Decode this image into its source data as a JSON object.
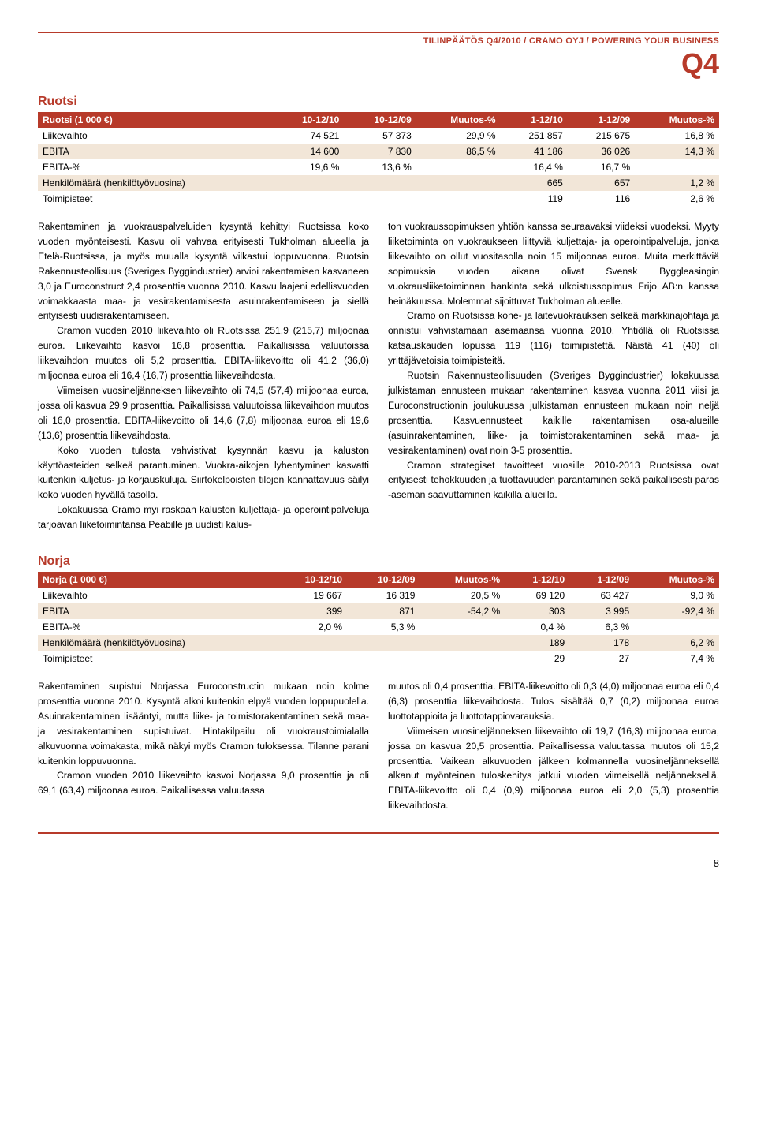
{
  "header": {
    "breadcrumb": "TILINPÄÄTÖS Q4/2010 / CRAMO OYJ / POWERING YOUR BUSINESS",
    "q": "Q4"
  },
  "ruotsi": {
    "title": "Ruotsi",
    "columns": [
      "Ruotsi (1 000 €)",
      "10-12/10",
      "10-12/09",
      "Muutos-%",
      "1-12/10",
      "1-12/09",
      "Muutos-%"
    ],
    "rows": [
      [
        "Liikevaihto",
        "74 521",
        "57 373",
        "29,9 %",
        "251 857",
        "215 675",
        "16,8 %"
      ],
      [
        "EBITA",
        "14 600",
        "7 830",
        "86,5 %",
        "41 186",
        "36 026",
        "14,3 %"
      ],
      [
        "EBITA-%",
        "19,6 %",
        "13,6 %",
        "",
        "16,4 %",
        "16,7 %",
        ""
      ],
      [
        "Henkilömäärä (henkilötyövuosina)",
        "",
        "",
        "",
        "665",
        "657",
        "1,2 %"
      ],
      [
        "Toimipisteet",
        "",
        "",
        "",
        "119",
        "116",
        "2,6 %"
      ]
    ]
  },
  "ruotsi_text": {
    "left": [
      "Rakentaminen ja vuokrauspalveluiden kysyntä kehittyi Ruotsissa koko vuoden myönteisesti. Kasvu oli vahvaa erityisesti Tukholman alueella ja Etelä-Ruotsissa, ja myös muualla kysyntä vilkastui loppuvuonna. Ruotsin Rakennusteollisuus (Sveriges Byggindustrier) arvioi rakentamisen kasvaneen 3,0 ja Euroconstruct 2,4 prosenttia vuonna 2010. Kasvu laajeni edellisvuoden voimakkaasta maa- ja vesirakentamisesta asuinrakentamiseen ja siellä erityisesti uudisrakentamiseen.",
      "Cramon vuoden 2010 liikevaihto oli Ruotsissa 251,9 (215,7) miljoonaa euroa. Liikevaihto kasvoi 16,8 prosenttia. Paikallisissa valuutoissa liikevaihdon muutos oli 5,2 prosenttia. EBITA-liikevoitto oli 41,2 (36,0) miljoonaa euroa eli 16,4 (16,7) prosenttia liikevaihdosta.",
      "Viimeisen vuosineljänneksen liikevaihto oli 74,5 (57,4) miljoonaa euroa, jossa oli kasvua 29,9 prosenttia. Paikallisissa valuutoissa liikevaihdon muutos oli 16,0 prosenttia. EBITA-liikevoitto oli 14,6 (7,8) miljoonaa euroa eli 19,6 (13,6) prosenttia liikevaihdosta.",
      "Koko vuoden tulosta vahvistivat kysynnän kasvu ja kaluston käyttöasteiden selkeä parantuminen. Vuokra-aikojen lyhentyminen kasvatti kuitenkin kuljetus- ja korjauskuluja. Siirtokelpoisten tilojen kannattavuus säilyi koko vuoden hyvällä tasolla.",
      "Lokakuussa Cramo myi raskaan kaluston kuljettaja- ja operointipalveluja tarjoavan liiketoimintansa Peabille ja uudisti kalus-"
    ],
    "right": [
      "ton vuokraussopimuksen yhtiön kanssa seuraavaksi viideksi vuodeksi. Myyty liiketoiminta on vuokraukseen liittyviä kuljettaja- ja operointipalveluja, jonka liikevaihto on ollut vuositasolla noin 15 miljoonaa euroa. Muita merkittäviä sopimuksia vuoden aikana olivat Svensk Byggleasingin vuokrausliiketoiminnan hankinta sekä ulkoistussopimus Frijo AB:n kanssa heinäkuussa. Molemmat sijoittuvat Tukholman alueelle.",
      "Cramo on Ruotsissa kone- ja laitevuokrauksen selkeä markkinajohtaja ja onnistui vahvistamaan asemaansa vuonna 2010. Yhtiöllä oli Ruotsissa katsauskauden lopussa 119 (116) toimipistettä. Näistä 41 (40) oli yrittäjävetoisia toimipisteitä.",
      "Ruotsin Rakennusteollisuuden (Sveriges Byggindustrier) lokakuussa julkistaman ennusteen mukaan rakentaminen kasvaa vuonna 2011 viisi ja Euroconstructionin joulukuussa julkistaman ennusteen mukaan noin neljä prosenttia. Kasvuennusteet kaikille rakentamisen osa-alueille (asuinrakentaminen, liike- ja toimistorakentaminen sekä maa- ja vesirakentaminen) ovat noin 3-5 prosenttia.",
      "Cramon strategiset tavoitteet vuosille 2010-2013 Ruotsissa ovat erityisesti tehokkuuden ja tuottavuuden parantaminen sekä paikallisesti paras -aseman saavuttaminen kaikilla alueilla."
    ]
  },
  "norja": {
    "title": "Norja",
    "columns": [
      "Norja (1 000 €)",
      "10-12/10",
      "10-12/09",
      "Muutos-%",
      "1-12/10",
      "1-12/09",
      "Muutos-%"
    ],
    "rows": [
      [
        "Liikevaihto",
        "19 667",
        "16 319",
        "20,5 %",
        "69 120",
        "63 427",
        "9,0 %"
      ],
      [
        "EBITA",
        "399",
        "871",
        "-54,2 %",
        "303",
        "3 995",
        "-92,4 %"
      ],
      [
        "EBITA-%",
        "2,0 %",
        "5,3 %",
        "",
        "0,4 %",
        "6,3 %",
        ""
      ],
      [
        "Henkilömäärä (henkilötyövuosina)",
        "",
        "",
        "",
        "189",
        "178",
        "6,2 %"
      ],
      [
        "Toimipisteet",
        "",
        "",
        "",
        "29",
        "27",
        "7,4 %"
      ]
    ]
  },
  "norja_text": {
    "left": [
      "Rakentaminen supistui Norjassa Euroconstructin mukaan noin kolme prosenttia vuonna 2010. Kysyntä alkoi kuitenkin elpyä vuoden loppupuolella. Asuinrakentaminen lisääntyi, mutta liike- ja toimistorakentaminen sekä maa- ja vesirakentaminen supistuivat. Hintakilpailu oli vuokraustoimialalla alkuvuonna voimakasta, mikä näkyi myös Cramon tuloksessa. Tilanne parani kuitenkin loppuvuonna.",
      "Cramon vuoden 2010 liikevaihto kasvoi Norjassa 9,0 prosenttia ja oli 69,1 (63,4) miljoonaa euroa. Paikallisessa valuutassa"
    ],
    "right": [
      "muutos oli 0,4 prosenttia. EBITA-liikevoitto oli 0,3 (4,0) miljoonaa euroa eli 0,4 (6,3) prosenttia liikevaihdosta. Tulos sisältää 0,7 (0,2) miljoonaa euroa luottotappioita ja luottotappiovarauksia.",
      "Viimeisen vuosineljänneksen liikevaihto oli 19,7 (16,3) miljoonaa euroa, jossa on kasvua 20,5 prosenttia. Paikallisessa valuutassa muutos oli 15,2 prosenttia. Vaikean alkuvuoden jälkeen kolmannella vuosineljänneksellä alkanut myönteinen tuloskehitys jatkui vuoden viimeisellä neljänneksellä. EBITA-liikevoitto oli 0,4 (0,9) miljoonaa euroa eli 2,0 (5,3) prosenttia liikevaihdosta."
    ]
  },
  "pagenum": "8"
}
